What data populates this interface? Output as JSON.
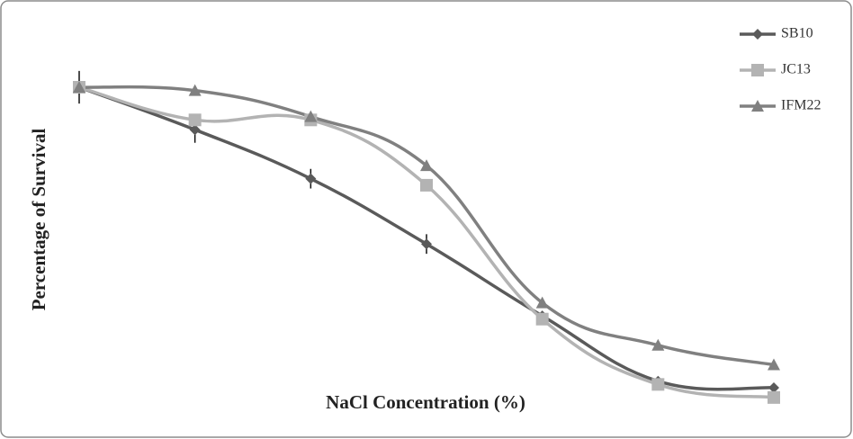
{
  "chart_data": {
    "type": "line",
    "x_label": "NaCl Concentration (%)",
    "y_label": "Percentage of Survival",
    "categories": [
      null,
      null,
      null,
      null,
      null,
      null,
      null
    ],
    "series": [
      {
        "name": "SB10",
        "color": "#5a5a5a",
        "marker": "diamond",
        "values": [
          100,
          87,
          72,
          52,
          30,
          10,
          8
        ],
        "errors": [
          5,
          4,
          3,
          3,
          null,
          null,
          null
        ]
      },
      {
        "name": "JC13",
        "color": "#b3b3b3",
        "marker": "square",
        "values": [
          100,
          90,
          90,
          70,
          29,
          9,
          5
        ]
      },
      {
        "name": "IFM22",
        "color": "#808080",
        "marker": "triangle",
        "values": [
          100,
          99,
          91,
          76,
          34,
          21,
          15
        ]
      }
    ],
    "legend": "top-right"
  }
}
